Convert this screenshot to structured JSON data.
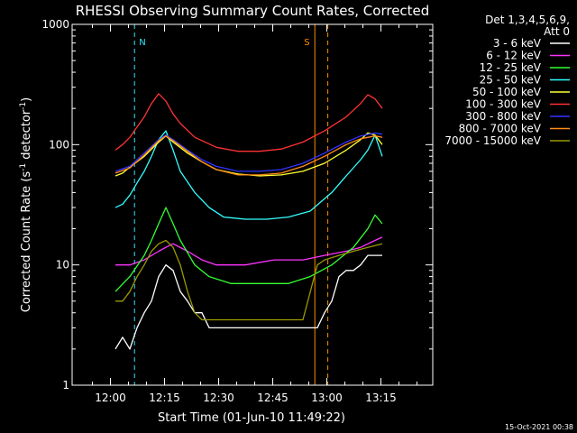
{
  "chart_data": {
    "type": "line",
    "title": "RHESSI Observing Summary Count Rates, Corrected",
    "xlabel": "Start Time (01-Jun-10 11:49:22)",
    "ylabel": "Corrected Count Rate (s⁻¹ detector⁻¹)",
    "ylabel_main": "Corrected Count Rate (s",
    "ylabel_sup1": "-1",
    "ylabel_mid": " detector",
    "ylabel_sup2": "-1",
    "ylabel_end": ")",
    "y_scale": "log",
    "ylim": [
      1,
      1000
    ],
    "xlim": [
      "11:49:22",
      "13:29:22"
    ],
    "x_ticks": [
      "12:00",
      "12:15",
      "12:30",
      "12:45",
      "13:00",
      "13:15"
    ],
    "x_tick_minutes": [
      10.63,
      25.63,
      40.63,
      55.63,
      70.63,
      85.63
    ],
    "x_range_minutes": [
      0,
      100
    ],
    "y_ticks": [
      {
        "value": 1,
        "label": "1"
      },
      {
        "value": 10,
        "label": "10"
      },
      {
        "value": 100,
        "label": "100"
      },
      {
        "value": 1000,
        "label": "1000"
      }
    ],
    "legend_header": [
      "Det 1,3,4,5,6,9,",
      "Att 0"
    ],
    "timestamp": "15-Oct-2021 00:38",
    "markers": [
      {
        "label": "N",
        "color": "#33e6ff",
        "line_minutes": [
          17.3
        ]
      },
      {
        "label": "S",
        "color": "#ff8c00",
        "line_minutes": [
          67.3,
          70.9
        ]
      }
    ],
    "series": [
      {
        "name": "3 - 6 keV",
        "color": "#ffffff",
        "x": [
          12,
          14,
          16,
          18,
          20,
          22,
          24,
          26,
          28,
          30,
          32,
          34,
          36,
          38,
          40,
          44,
          48,
          52,
          56,
          60,
          64,
          66,
          68,
          70,
          72,
          74,
          76,
          78,
          80,
          82,
          84,
          86
        ],
        "y": [
          2,
          2.5,
          2,
          3,
          4,
          5,
          8,
          10,
          9,
          6,
          5,
          4,
          4,
          3,
          3,
          3,
          3,
          3,
          3,
          3,
          3,
          3,
          3,
          4,
          5,
          8,
          9,
          9,
          10,
          12,
          12,
          12
        ]
      },
      {
        "name": "6 - 12 keV",
        "color": "#ff33ff",
        "x": [
          12,
          16,
          20,
          24,
          26,
          28,
          32,
          36,
          40,
          48,
          56,
          64,
          70,
          76,
          80,
          84,
          86
        ],
        "y": [
          10,
          10,
          11,
          13,
          14,
          15,
          13,
          11,
          10,
          10,
          11,
          11,
          12,
          13,
          14,
          16,
          17
        ]
      },
      {
        "name": "12 - 25 keV",
        "color": "#33ff33",
        "x": [
          12,
          16,
          20,
          22,
          24,
          26,
          28,
          30,
          34,
          38,
          44,
          52,
          60,
          66,
          72,
          78,
          82,
          84,
          86
        ],
        "y": [
          6,
          8,
          12,
          16,
          22,
          30,
          22,
          16,
          10,
          8,
          7,
          7,
          7,
          8,
          10,
          14,
          20,
          26,
          22
        ]
      },
      {
        "name": "25 - 50 keV",
        "color": "#33ffff",
        "x": [
          12,
          14,
          16,
          18,
          20,
          22,
          24,
          26,
          28,
          30,
          34,
          38,
          42,
          48,
          54,
          60,
          66,
          72,
          76,
          80,
          82,
          84,
          86
        ],
        "y": [
          30,
          32,
          38,
          48,
          60,
          80,
          110,
          130,
          90,
          60,
          40,
          30,
          25,
          24,
          24,
          25,
          28,
          40,
          55,
          75,
          90,
          120,
          80
        ]
      },
      {
        "name": "50 - 100 keV",
        "color": "#ffff33",
        "x": [
          12,
          14,
          16,
          20,
          24,
          26,
          28,
          32,
          36,
          40,
          46,
          52,
          58,
          64,
          70,
          76,
          80,
          82,
          84,
          86
        ],
        "y": [
          55,
          58,
          65,
          80,
          105,
          118,
          105,
          85,
          72,
          62,
          57,
          55,
          56,
          60,
          70,
          90,
          110,
          125,
          120,
          100
        ]
      },
      {
        "name": "100 - 300 keV",
        "color": "#ff3333",
        "x": [
          12,
          14,
          16,
          18,
          20,
          22,
          24,
          26,
          28,
          30,
          34,
          40,
          46,
          52,
          58,
          64,
          70,
          76,
          80,
          82,
          84,
          86
        ],
        "y": [
          90,
          100,
          115,
          140,
          170,
          220,
          265,
          230,
          180,
          150,
          115,
          95,
          88,
          88,
          92,
          105,
          130,
          170,
          220,
          260,
          240,
          200
        ]
      },
      {
        "name": "300 - 800 keV",
        "color": "#3333ff",
        "x": [
          12,
          16,
          20,
          24,
          26,
          28,
          32,
          36,
          40,
          46,
          52,
          58,
          64,
          70,
          76,
          80,
          84,
          86
        ],
        "y": [
          60,
          66,
          85,
          110,
          120,
          110,
          90,
          75,
          66,
          60,
          60,
          62,
          70,
          85,
          105,
          118,
          125,
          122
        ]
      },
      {
        "name": "800 - 7000 keV",
        "color": "#ff8c1a",
        "x": [
          12,
          16,
          20,
          24,
          26,
          28,
          32,
          36,
          40,
          46,
          52,
          58,
          64,
          70,
          76,
          80,
          84,
          86
        ],
        "y": [
          58,
          64,
          82,
          108,
          118,
          108,
          88,
          72,
          62,
          56,
          56,
          58,
          66,
          80,
          100,
          112,
          118,
          115
        ]
      },
      {
        "name": "7000 - 15000 keV",
        "color": "#999900",
        "x": [
          12,
          14,
          16,
          18,
          20,
          22,
          24,
          26,
          28,
          30,
          32,
          34,
          36,
          40,
          44,
          48,
          52,
          56,
          60,
          64,
          68,
          70,
          74,
          78,
          82,
          86
        ],
        "y": [
          5,
          5,
          6,
          8,
          10,
          13,
          15,
          16,
          14,
          10,
          6,
          4,
          3.5,
          3.5,
          3.5,
          3.5,
          3.5,
          3.5,
          3.5,
          3.5,
          10,
          11,
          12,
          13,
          14,
          15
        ]
      }
    ]
  }
}
